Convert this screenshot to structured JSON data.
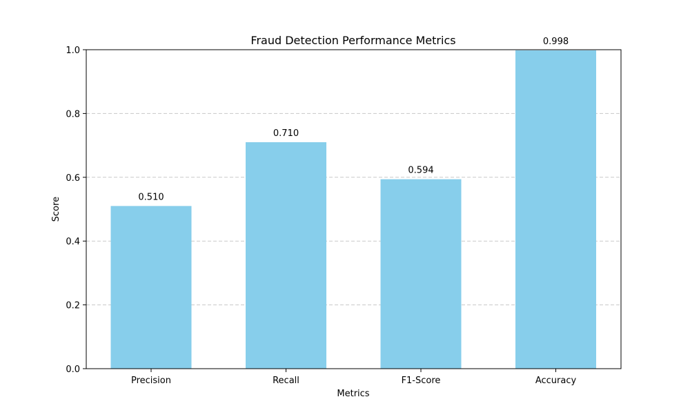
{
  "chart_data": {
    "type": "bar",
    "title": "Fraud Detection Performance Metrics",
    "xlabel": "Metrics",
    "ylabel": "Score",
    "categories": [
      "Precision",
      "Recall",
      "F1-Score",
      "Accuracy"
    ],
    "values": [
      0.51,
      0.71,
      0.594,
      0.998
    ],
    "value_labels": [
      "0.510",
      "0.710",
      "0.594",
      "0.998"
    ],
    "ylim": [
      0,
      1.0
    ],
    "yticks": [
      "0.0",
      "0.2",
      "0.4",
      "0.6",
      "0.8",
      "1.0"
    ],
    "grid": "y-dashed",
    "legend": "none",
    "colors": {
      "bar": "#87ceeb",
      "grid": "#c8c8c8",
      "axis": "#000000"
    }
  }
}
